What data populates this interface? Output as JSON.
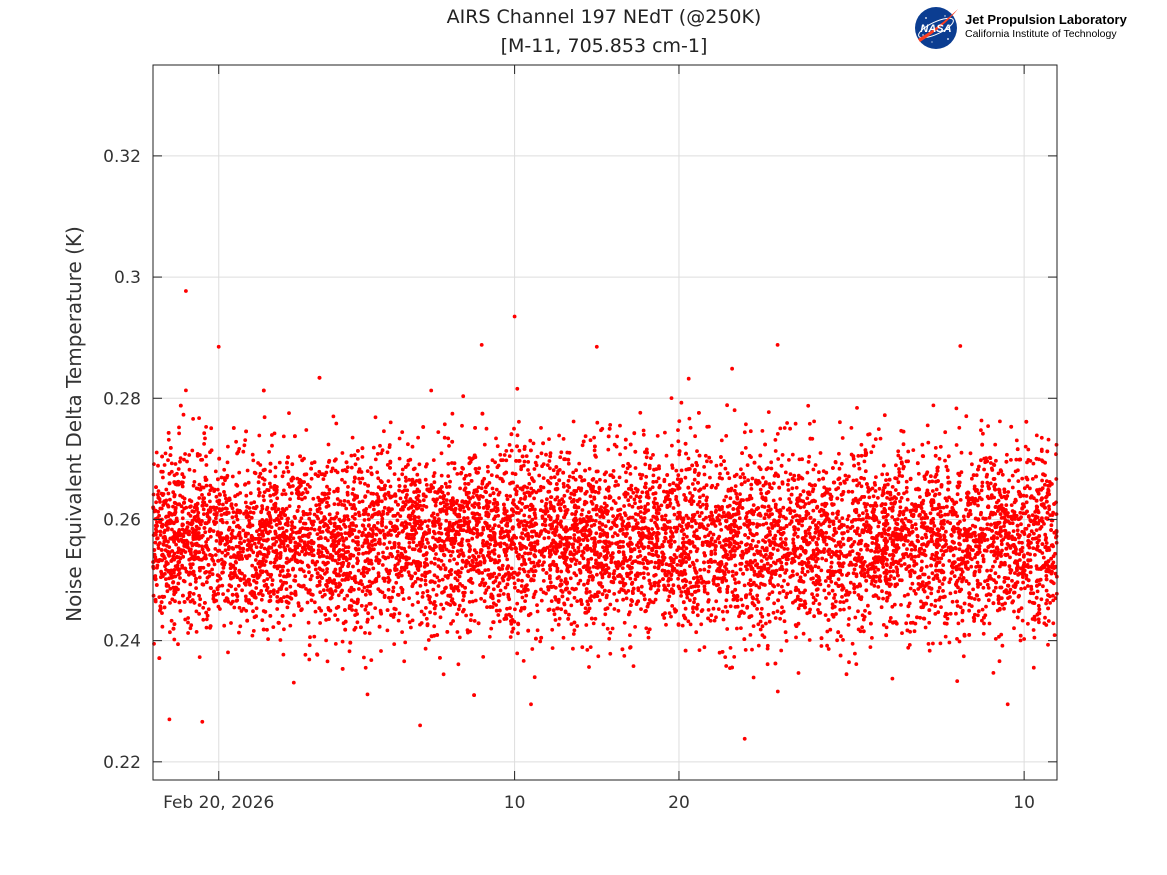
{
  "logo": {
    "meatball_text": "NASA",
    "name": "Jet Propulsion Laboratory",
    "subtitle": "California Institute of Technology"
  },
  "chart_data": {
    "type": "scatter",
    "title": [
      "AIRS Channel 197 NEdT (@250K)",
      "[M-11, 705.853 cm-1]"
    ],
    "xlabel": "",
    "ylabel": "Noise Equivalent Delta Temperature (K)",
    "x_axis": {
      "kind": "date",
      "range": [
        "2026-02-16",
        "2026-04-12"
      ],
      "ticks": [
        {
          "date": "2026-02-20",
          "label": "Feb 20, 2026"
        },
        {
          "date": "2026-03-10",
          "label": "10"
        },
        {
          "date": "2026-03-20",
          "label": "20"
        },
        {
          "date": "2026-04-10",
          "label": "10"
        }
      ]
    },
    "y_axis": {
      "range": [
        0.217,
        0.335
      ],
      "ticks": [
        0.22,
        0.24,
        0.26,
        0.28,
        0.3,
        0.32
      ],
      "tick_labels": [
        "0.22",
        "0.24",
        "0.26",
        "0.28",
        "0.3",
        "0.32"
      ]
    },
    "grid": true,
    "marker_color": "#ff0000",
    "series": [
      {
        "name": "",
        "point_count_approx": 9000,
        "distribution": {
          "mean": 0.2565,
          "std": 0.0075,
          "min": 0.2238,
          "max": 0.2977
        },
        "notable_points": [
          {
            "x": "2026-02-18",
            "y": 0.2977
          },
          {
            "x": "2026-03-10",
            "y": 0.2935
          },
          {
            "x": "2026-03-08",
            "y": 0.2888
          },
          {
            "x": "2026-03-26",
            "y": 0.2888
          },
          {
            "x": "2026-03-15",
            "y": 0.2885
          },
          {
            "x": "2026-02-20",
            "y": 0.2885
          },
          {
            "x": "2026-02-18",
            "y": 0.2813
          },
          {
            "x": "2026-03-24",
            "y": 0.2238
          },
          {
            "x": "2026-02-17",
            "y": 0.227
          },
          {
            "x": "2026-02-19",
            "y": 0.2266
          },
          {
            "x": "2026-03-11",
            "y": 0.2295
          },
          {
            "x": "2026-04-09",
            "y": 0.2295
          }
        ]
      }
    ]
  }
}
